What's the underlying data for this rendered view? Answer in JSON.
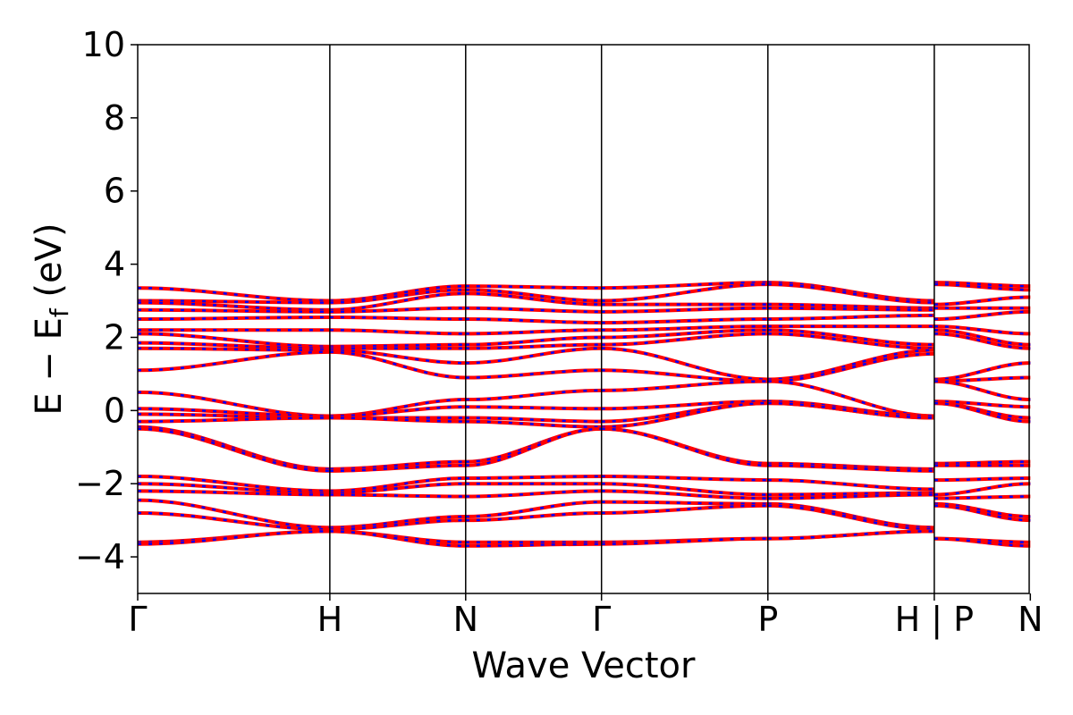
{
  "colors": {
    "band_primary": "#ff0000",
    "band_dash": "#0000ff",
    "axes": "#000000",
    "background": "#ffffff"
  },
  "chart_data": {
    "type": "line",
    "title": "",
    "xlabel": "Wave Vector",
    "ylabel": "E − E<sub>f</sub> (eV)",
    "ylabel_parts": {
      "main": "E − E",
      "sub": "f",
      "tail": " (eV)"
    },
    "ylim": [
      -5,
      10
    ],
    "yticks": [
      -4,
      -2,
      0,
      2,
      4,
      6,
      8,
      10
    ],
    "ytick_labels": [
      "−4",
      "−2",
      "0",
      "2",
      "4",
      "6",
      "8",
      "10"
    ],
    "xlim": [
      0,
      4.64
    ],
    "kpoints": [
      {
        "label": "Γ",
        "x": 0.0
      },
      {
        "label": "H",
        "x": 1.0
      },
      {
        "label": "N",
        "x": 1.707
      },
      {
        "label": "Γ",
        "x": 2.414
      },
      {
        "label": "P",
        "x": 3.28
      },
      {
        "label": "H | P",
        "x": 4.146
      },
      {
        "label": "N",
        "x": 4.646
      }
    ],
    "grid": false,
    "legend": "none",
    "segments": [
      {
        "from": "Γ",
        "to": "H",
        "x0": 0.0,
        "x1": 1.0,
        "start": [
          3.35,
          3.0,
          2.95,
          2.75,
          2.5,
          2.2,
          2.1,
          1.85,
          1.7,
          1.1,
          0.5,
          0.05,
          -0.1,
          -0.3,
          -0.45,
          -0.5,
          -1.8,
          -2.0,
          -2.2,
          -2.45,
          -2.8,
          -3.6,
          -3.65
        ],
        "end": [
          3.0,
          2.95,
          2.75,
          2.7,
          2.55,
          2.2,
          1.75,
          1.7,
          1.65,
          1.6,
          -0.15,
          -0.15,
          -0.2,
          -0.2,
          -1.6,
          -1.65,
          -2.2,
          -2.25,
          -2.3,
          -3.2,
          -3.25,
          -3.3,
          -3.3
        ]
      },
      {
        "from": "H",
        "to": "N",
        "x0": 1.0,
        "x1": 1.707,
        "start": [
          3.0,
          2.95,
          2.75,
          2.7,
          2.55,
          2.2,
          1.75,
          1.7,
          1.65,
          1.6,
          -0.15,
          -0.15,
          -0.2,
          -0.2,
          -1.6,
          -1.65,
          -2.2,
          -2.25,
          -2.3,
          -3.2,
          -3.25,
          -3.3,
          -3.3
        ],
        "end": [
          3.4,
          3.3,
          3.2,
          2.8,
          2.5,
          2.1,
          1.8,
          1.7,
          1.3,
          0.9,
          0.3,
          0.1,
          -0.2,
          -0.3,
          -1.4,
          -1.5,
          -1.85,
          -2.0,
          -2.35,
          -2.9,
          -3.0,
          -3.6,
          -3.7
        ]
      },
      {
        "from": "N",
        "to": "Γ",
        "x0": 1.707,
        "x1": 2.414,
        "start": [
          3.4,
          3.3,
          3.2,
          2.8,
          2.5,
          2.1,
          1.8,
          1.7,
          1.3,
          0.9,
          0.3,
          0.1,
          -0.2,
          -0.3,
          -1.4,
          -1.5,
          -1.85,
          -2.0,
          -2.35,
          -2.9,
          -3.0,
          -3.6,
          -3.7
        ],
        "end": [
          3.35,
          3.0,
          2.9,
          2.7,
          2.4,
          2.2,
          2.0,
          1.8,
          1.7,
          1.1,
          0.55,
          0.05,
          -0.3,
          -0.45,
          -0.5,
          -0.5,
          -1.8,
          -2.0,
          -2.2,
          -2.5,
          -2.8,
          -3.6,
          -3.65
        ]
      },
      {
        "from": "Γ",
        "to": "P",
        "x0": 2.414,
        "x1": 3.28,
        "start": [
          3.35,
          3.0,
          2.9,
          2.7,
          2.4,
          2.2,
          2.0,
          1.8,
          1.7,
          1.1,
          0.55,
          0.05,
          -0.3,
          -0.45,
          -0.5,
          -0.5,
          -1.8,
          -2.0,
          -2.2,
          -2.5,
          -2.8,
          -3.6,
          -3.65
        ],
        "end": [
          3.5,
          3.45,
          2.9,
          2.8,
          2.5,
          2.3,
          2.2,
          2.1,
          0.85,
          0.8,
          0.8,
          0.25,
          0.2,
          0.2,
          -1.45,
          -1.5,
          -1.9,
          -2.3,
          -2.4,
          -2.55,
          -2.6,
          -3.5,
          -3.5
        ]
      },
      {
        "from": "P",
        "to": "H",
        "x0": 3.28,
        "x1": 4.146,
        "start": [
          3.5,
          3.45,
          2.9,
          2.8,
          2.5,
          2.3,
          2.2,
          2.1,
          0.85,
          0.8,
          0.8,
          0.25,
          0.2,
          0.2,
          -1.45,
          -1.5,
          -1.9,
          -2.3,
          -2.4,
          -2.55,
          -2.6,
          -3.5,
          -3.5
        ],
        "end": [
          3.0,
          2.95,
          2.8,
          2.75,
          2.6,
          2.3,
          1.8,
          1.7,
          1.65,
          1.55,
          -0.15,
          -0.15,
          -0.2,
          -0.2,
          -1.6,
          -1.65,
          -2.15,
          -2.25,
          -2.3,
          -3.2,
          -3.25,
          -3.3,
          -3.3
        ]
      },
      {
        "from": "P",
        "to": "N",
        "x0": 4.146,
        "x1": 4.646,
        "start": [
          3.5,
          3.45,
          2.9,
          2.8,
          2.5,
          2.3,
          2.2,
          2.1,
          0.85,
          0.8,
          0.8,
          0.25,
          0.2,
          0.2,
          -1.45,
          -1.5,
          -1.9,
          -2.3,
          -2.4,
          -2.55,
          -2.6,
          -3.5,
          -3.5
        ],
        "end": [
          3.4,
          3.3,
          3.1,
          2.8,
          2.7,
          2.1,
          1.8,
          1.7,
          1.3,
          0.9,
          0.3,
          0.1,
          -0.2,
          -0.3,
          -1.4,
          -1.5,
          -1.85,
          -2.0,
          -2.35,
          -2.9,
          -3.0,
          -3.6,
          -3.7
        ]
      }
    ]
  }
}
